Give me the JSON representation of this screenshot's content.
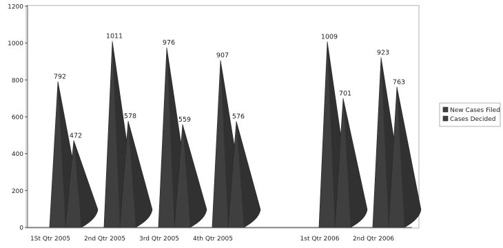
{
  "chart_data": {
    "type": "bar",
    "categories": [
      "1St Qtr 2005",
      "2nd Qtr 2005",
      "3rd Qtr 2005",
      "4th Qtr 2005",
      "",
      "1st Qtr 2006",
      "2nd Qtr 2006"
    ],
    "series": [
      {
        "name": "New Cases Filed",
        "values": [
          792,
          1011,
          976,
          907,
          null,
          1009,
          923
        ]
      },
      {
        "name": "Cases Decided",
        "values": [
          472,
          578,
          559,
          576,
          null,
          701,
          763
        ]
      }
    ],
    "yticks": [
      "0",
      "200",
      "400",
      "600",
      "800",
      "1000",
      "1200"
    ],
    "ylim": [
      0,
      1200
    ],
    "grid": false,
    "legend_position": "right",
    "colors": {
      "series_fill": "#3f3f3f",
      "series_shade": "#262626",
      "axis": "#555555",
      "frame": "#b0b0b0",
      "text": "#222222"
    }
  }
}
